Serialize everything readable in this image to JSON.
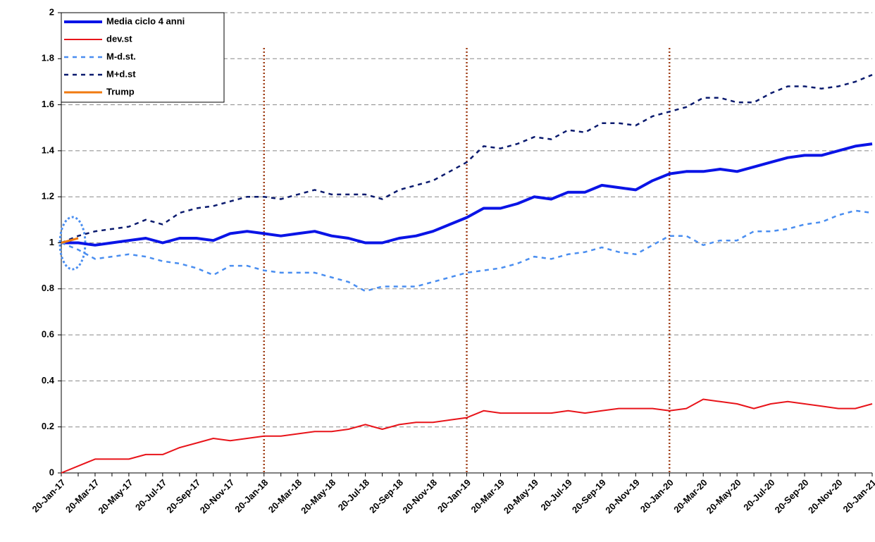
{
  "chart_data": {
    "type": "line",
    "categories": [
      "20-Jan-17",
      null,
      "20-Mar-17",
      null,
      "20-May-17",
      null,
      "20-Jul-17",
      null,
      "20-Sep-17",
      null,
      "20-Nov-17",
      null,
      "20-Jan-18",
      null,
      "20-Mar-18",
      null,
      "20-May-18",
      null,
      "20-Jul-18",
      null,
      "20-Sep-18",
      null,
      "20-Nov-18",
      null,
      "20-Jan-19",
      null,
      "20-Mar-19",
      null,
      "20-May-19",
      null,
      "20-Jul-19",
      null,
      "20-Sep-19",
      null,
      "20-Nov-19",
      null,
      "20-Jan-20",
      null,
      "20-Mar-20",
      null,
      "20-May-20",
      null,
      "20-Jul-20",
      null,
      "20-Sep-20",
      null,
      "20-Nov-20",
      null,
      "20-Jan-21"
    ],
    "series": [
      {
        "name": "Media ciclo 4 anni",
        "color": "#0a14e6",
        "values": [
          1.0,
          1.0,
          0.99,
          1.0,
          1.01,
          1.02,
          1.0,
          1.02,
          1.02,
          1.01,
          1.04,
          1.05,
          1.04,
          1.03,
          1.04,
          1.05,
          1.03,
          1.02,
          1.0,
          1.0,
          1.02,
          1.03,
          1.05,
          1.08,
          1.11,
          1.15,
          1.15,
          1.17,
          1.2,
          1.19,
          1.22,
          1.22,
          1.25,
          1.24,
          1.23,
          1.27,
          1.3,
          1.31,
          1.31,
          1.32,
          1.31,
          1.33,
          1.35,
          1.37,
          1.38,
          1.38,
          1.4,
          1.42,
          1.43
        ]
      },
      {
        "name": "dev.st",
        "color": "#e8141a",
        "values": [
          0.0,
          0.03,
          0.06,
          0.06,
          0.06,
          0.08,
          0.08,
          0.11,
          0.13,
          0.15,
          0.14,
          0.15,
          0.16,
          0.16,
          0.17,
          0.18,
          0.18,
          0.19,
          0.21,
          0.19,
          0.21,
          0.22,
          0.22,
          0.23,
          0.24,
          0.27,
          0.26,
          0.26,
          0.26,
          0.26,
          0.27,
          0.26,
          0.27,
          0.28,
          0.28,
          0.28,
          0.27,
          0.28,
          0.32,
          0.31,
          0.3,
          0.28,
          0.3,
          0.31,
          0.3,
          0.29,
          0.28,
          0.28,
          0.3
        ]
      },
      {
        "name": "M-d.st.",
        "color": "#4a8ef0",
        "values": [
          1.0,
          0.97,
          0.93,
          0.94,
          0.95,
          0.94,
          0.92,
          0.91,
          0.89,
          0.86,
          0.9,
          0.9,
          0.88,
          0.87,
          0.87,
          0.87,
          0.85,
          0.83,
          0.79,
          0.81,
          0.81,
          0.81,
          0.83,
          0.85,
          0.87,
          0.88,
          0.89,
          0.91,
          0.94,
          0.93,
          0.95,
          0.96,
          0.98,
          0.96,
          0.95,
          0.99,
          1.03,
          1.03,
          0.99,
          1.01,
          1.01,
          1.05,
          1.05,
          1.06,
          1.08,
          1.09,
          1.12,
          1.14,
          1.13
        ]
      },
      {
        "name": "M+d.st",
        "color": "#0a1a6e",
        "values": [
          1.0,
          1.03,
          1.05,
          1.06,
          1.07,
          1.1,
          1.08,
          1.13,
          1.15,
          1.16,
          1.18,
          1.2,
          1.2,
          1.19,
          1.21,
          1.23,
          1.21,
          1.21,
          1.21,
          1.19,
          1.23,
          1.25,
          1.27,
          1.31,
          1.35,
          1.42,
          1.41,
          1.43,
          1.46,
          1.45,
          1.49,
          1.48,
          1.52,
          1.52,
          1.51,
          1.55,
          1.57,
          1.59,
          1.63,
          1.63,
          1.61,
          1.61,
          1.65,
          1.68,
          1.68,
          1.67,
          1.68,
          1.7,
          1.73
        ]
      },
      {
        "name": "Trump",
        "color": "#f07a10",
        "values": [
          1.0,
          1.02,
          null,
          null,
          null,
          null,
          null,
          null,
          null,
          null,
          null,
          null,
          null,
          null,
          null,
          null,
          null,
          null,
          null,
          null,
          null,
          null,
          null,
          null,
          null,
          null,
          null,
          null,
          null,
          null,
          null,
          null,
          null,
          null,
          null,
          null,
          null,
          null,
          null,
          null,
          null,
          null,
          null,
          null,
          null,
          null,
          null,
          null,
          null
        ]
      }
    ],
    "vlines": [
      12,
      24,
      36
    ],
    "ylim": [
      0,
      2
    ],
    "yticks": [
      0,
      0.2,
      0.4,
      0.6,
      0.8,
      1,
      1.2,
      1.4,
      1.6,
      1.8,
      2
    ],
    "grid": true
  }
}
